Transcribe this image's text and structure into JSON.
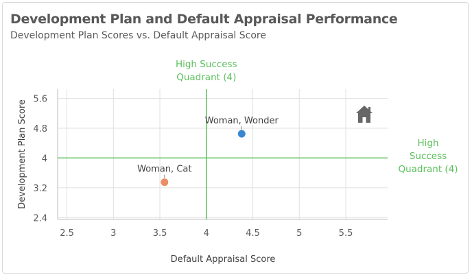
{
  "header": {
    "title": "Development Plan and Default Appraisal Performance",
    "subtitle": "Development Plan Scores vs. Default Appraisal Score"
  },
  "colors": {
    "reference_line": "#5cc05c",
    "grid": "#e0e0e0",
    "axis": "#bdbdbd",
    "text": "#595959"
  },
  "icons": {
    "home": "home-icon"
  },
  "chart_data": {
    "type": "scatter",
    "title": "Development Plan and Default Appraisal Performance",
    "subtitle": "Development Plan Scores vs. Default Appraisal Score",
    "xlabel": "Default Appraisal Score",
    "ylabel": "Development Plan Score",
    "xlim": [
      2.4,
      5.95
    ],
    "ylim": [
      2.35,
      5.85
    ],
    "xticks": [
      2.5,
      3,
      3.5,
      4,
      4.5,
      5,
      5.5
    ],
    "xtick_labels": [
      "2.5",
      "3",
      "3.5",
      "4",
      "4.5",
      "5",
      "5.5"
    ],
    "yticks": [
      2.4,
      3.2,
      4,
      4.8,
      5.6
    ],
    "ytick_labels": [
      "2.4",
      "3.2",
      "4",
      "4.8",
      "5.6"
    ],
    "grid": true,
    "points": [
      {
        "label": "Woman, Wonder",
        "x": 4.38,
        "y": 4.65,
        "color": "#3a87d1"
      },
      {
        "label": "Woman, Cat",
        "x": 3.55,
        "y": 3.35,
        "color": "#ea8e68"
      }
    ],
    "reference_lines": {
      "x": {
        "value": 4,
        "label": "High Success Quadrant (4)"
      },
      "y": {
        "value": 4,
        "label": "High Success Quadrant (4)"
      }
    }
  }
}
